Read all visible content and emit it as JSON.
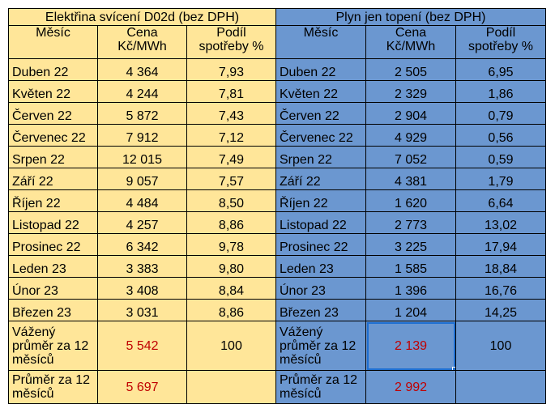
{
  "electricity": {
    "title": "Elektřina svícení D02d (bez DPH)",
    "header": {
      "month": "Měsíc",
      "price": "Cena Kč/MWh",
      "share": "Podíl spotřeby %"
    },
    "rows": [
      {
        "month": "Duben 22",
        "price": "4 364",
        "share": "7,93"
      },
      {
        "month": "Květen 22",
        "price": "4 244",
        "share": "7,81"
      },
      {
        "month": "Červen 22",
        "price": "5 872",
        "share": "7,43"
      },
      {
        "month": "Červenec 22",
        "price": "7 912",
        "share": "7,12"
      },
      {
        "month": "Srpen 22",
        "price": "12 015",
        "share": "7,49"
      },
      {
        "month": "Září 22",
        "price": "9 057",
        "share": "7,57"
      },
      {
        "month": "Říjen 22",
        "price": "4 484",
        "share": "8,50"
      },
      {
        "month": "Listopad 22",
        "price": "4 257",
        "share": "8,86"
      },
      {
        "month": "Prosinec 22",
        "price": "6 342",
        "share": "9,78"
      },
      {
        "month": "Leden 23",
        "price": "3 383",
        "share": "9,80"
      },
      {
        "month": "Únor 23",
        "price": "3 408",
        "share": "8,84"
      },
      {
        "month": "Březen 23",
        "price": "3 031",
        "share": "8,86"
      }
    ],
    "weighted_avg": {
      "label": "Vážený průměr za 12 měsíců",
      "price": "5 542",
      "share": "100"
    },
    "avg": {
      "label": "Průměr za 12 měsíců",
      "price": "5 697"
    }
  },
  "gas": {
    "title": "Plyn jen topení (bez DPH)",
    "header": {
      "month": "Měsíc",
      "price": "Cena Kč/MWh",
      "share": "Podíl spotřeby %"
    },
    "rows": [
      {
        "month": "Duben 22",
        "price": "2 505",
        "share": "6,95"
      },
      {
        "month": "Květen 22",
        "price": "2 329",
        "share": "1,86"
      },
      {
        "month": "Červen 22",
        "price": "2 904",
        "share": "0,79"
      },
      {
        "month": "Červenec 22",
        "price": "4 929",
        "share": "0,56"
      },
      {
        "month": "Srpen 22",
        "price": "7 052",
        "share": "0,59"
      },
      {
        "month": "Září 22",
        "price": "4 381",
        "share": "1,79"
      },
      {
        "month": "Říjen 22",
        "price": "1 620",
        "share": "6,64"
      },
      {
        "month": "Listopad 22",
        "price": "2 773",
        "share": "13,02"
      },
      {
        "month": "Prosinec 22",
        "price": "3 225",
        "share": "17,94"
      },
      {
        "month": "Leden 23",
        "price": "1 585",
        "share": "18,84"
      },
      {
        "month": "Únor 23",
        "price": "1 396",
        "share": "16,76"
      },
      {
        "month": "Březen 23",
        "price": "1 204",
        "share": "14,25"
      }
    ],
    "weighted_avg": {
      "label": "Vážený průměr za 12 měsíců",
      "price": "2 139",
      "share": "100"
    },
    "avg": {
      "label": "Průměr za 12 měsíců",
      "price": "2 992"
    }
  },
  "colors": {
    "electricity_bg": "#FFE699",
    "gas_bg": "#6B97D0",
    "average_text": "#C00000",
    "selection": "#1F6FD1"
  }
}
